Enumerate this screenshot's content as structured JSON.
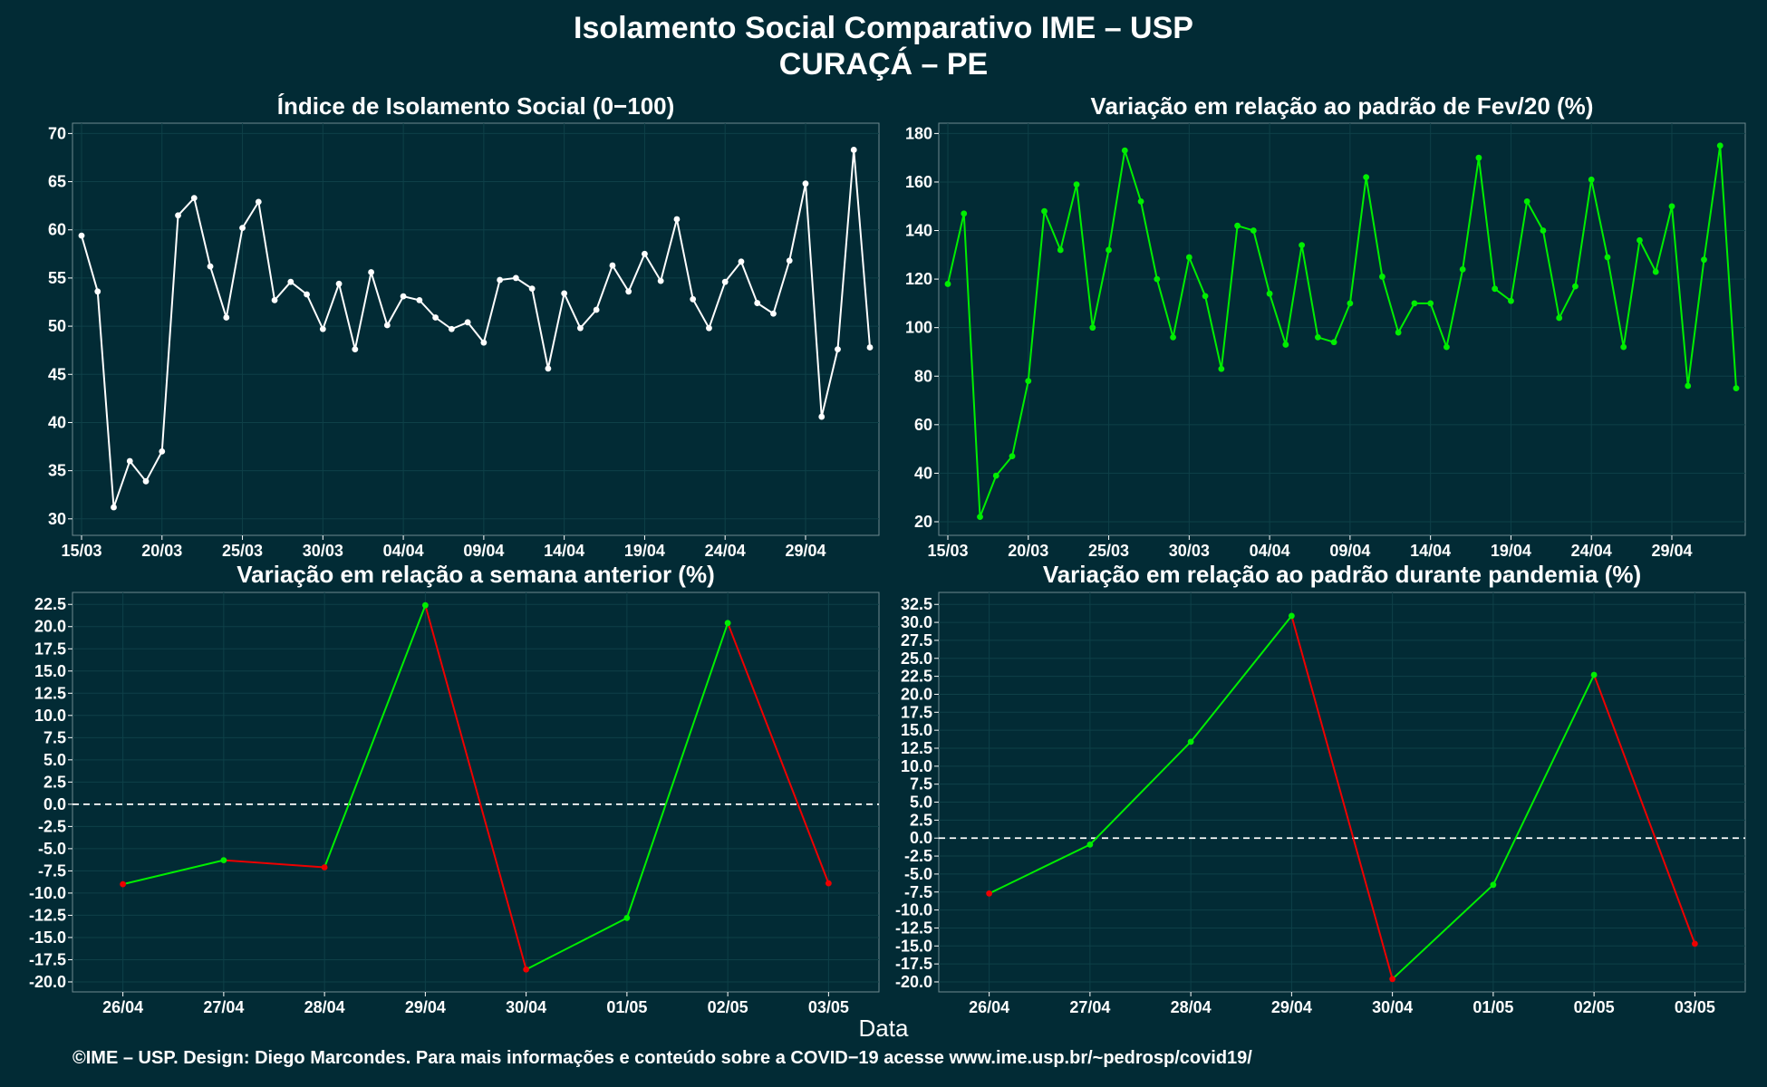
{
  "title": "Isolamento Social Comparativo IME – USP",
  "subtitle": "CURAÇÁ – PE",
  "x_axis_label": "Data",
  "footer": "©IME – USP. Design: Diego Marcondes. Para mais informações e conteúdo sobre a COVID−19 acesse www.ime.usp.br/~pedrosp/covid19/",
  "colors": {
    "background": "#022b35",
    "grid": "#0e4048",
    "white": "#ffffff",
    "green": "#00ee00",
    "red": "#ee0000"
  },
  "chart_data": [
    {
      "type": "line",
      "title": "Índice de Isolamento Social (0−100)",
      "ylim": [
        30,
        70
      ],
      "yticks": [
        30,
        35,
        40,
        45,
        50,
        55,
        60,
        65,
        70
      ],
      "x_start": "15/03",
      "xticks": [
        "15/03",
        "20/03",
        "25/03",
        "30/03",
        "04/04",
        "09/04",
        "14/04",
        "19/04",
        "24/04",
        "29/04"
      ],
      "series": [
        {
          "color": "#ffffff",
          "values": [
            59.4,
            53.6,
            31.2,
            36.0,
            33.9,
            37.0,
            61.5,
            63.3,
            56.2,
            50.9,
            60.2,
            62.9,
            52.7,
            54.6,
            53.3,
            49.7,
            54.4,
            47.6,
            55.6,
            50.1,
            53.1,
            52.7,
            50.9,
            49.7,
            50.4,
            48.3,
            54.8,
            55.0,
            53.9,
            45.6,
            53.4,
            49.8,
            51.7,
            56.3,
            53.6,
            57.5,
            54.7,
            61.1,
            52.8,
            49.8,
            54.6,
            56.7,
            52.4,
            51.3,
            56.8,
            64.8,
            40.6,
            47.6,
            68.3,
            47.8
          ]
        }
      ]
    },
    {
      "type": "line",
      "title": "Variação em relação ao padrão de Fev/20 (%)",
      "ylim": [
        20,
        180
      ],
      "yticks": [
        20,
        40,
        60,
        80,
        100,
        120,
        140,
        160,
        180
      ],
      "x_start": "15/03",
      "xticks": [
        "15/03",
        "20/03",
        "25/03",
        "30/03",
        "04/04",
        "09/04",
        "14/04",
        "19/04",
        "24/04",
        "29/04"
      ],
      "series": [
        {
          "color": "#00ee00",
          "values": [
            118,
            147,
            22,
            39,
            47,
            78,
            148,
            132,
            159,
            100,
            132,
            173,
            152,
            120,
            96,
            129,
            113,
            83,
            142,
            140,
            114,
            93,
            134,
            96,
            94,
            110,
            162,
            121,
            98,
            110,
            110,
            92,
            124,
            170,
            116,
            111,
            152,
            140,
            104,
            117,
            161,
            129,
            92,
            136,
            123,
            150,
            76,
            128,
            175,
            75
          ]
        }
      ]
    },
    {
      "type": "line",
      "title": "Variação em relação a semana anterior (%)",
      "ylim": [
        -20,
        22.5
      ],
      "yticks": [
        -20.0,
        -17.5,
        -15.0,
        -12.5,
        -10.0,
        -7.5,
        -5.0,
        -2.5,
        0.0,
        2.5,
        5.0,
        7.5,
        10.0,
        12.5,
        15.0,
        17.5,
        20.0,
        22.5
      ],
      "categories": [
        "26/04",
        "27/04",
        "28/04",
        "29/04",
        "30/04",
        "01/05",
        "02/05",
        "03/05"
      ],
      "reference_line": 0,
      "series": [
        {
          "values": [
            -9.0,
            -6.3,
            -7.1,
            22.4,
            -18.6,
            -12.8,
            20.4,
            -8.9
          ],
          "segment_colors": "green when rising, red when falling"
        }
      ]
    },
    {
      "type": "line",
      "title": "Variação em relação ao padrão durante pandemia (%)",
      "ylim": [
        -20,
        32.5
      ],
      "yticks": [
        -20.0,
        -17.5,
        -15.0,
        -12.5,
        -10.0,
        -7.5,
        -5.0,
        -2.5,
        0.0,
        2.5,
        5.0,
        7.5,
        10.0,
        12.5,
        15.0,
        17.5,
        20.0,
        22.5,
        25.0,
        27.5,
        30.0,
        32.5
      ],
      "categories": [
        "26/04",
        "27/04",
        "28/04",
        "29/04",
        "30/04",
        "01/05",
        "02/05",
        "03/05"
      ],
      "reference_line": 0,
      "series": [
        {
          "values": [
            -7.7,
            -0.9,
            13.4,
            30.9,
            -19.6,
            -6.5,
            22.7,
            -14.7
          ],
          "segment_colors": "green when rising, red when falling"
        }
      ]
    }
  ]
}
